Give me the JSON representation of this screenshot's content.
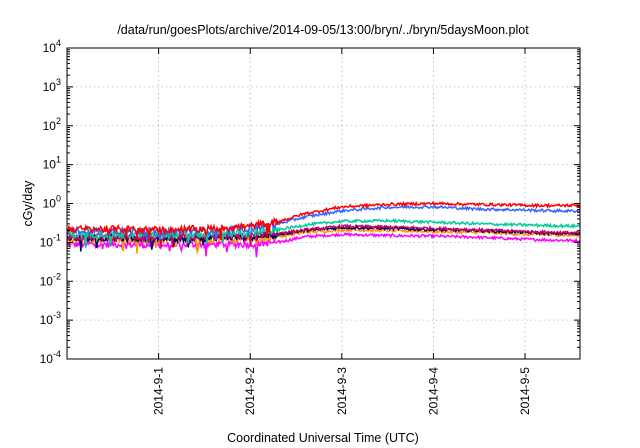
{
  "chart_data": {
    "type": "line",
    "title": "/data/run/goesPlots/archive/2014-09-05/13:00/bryn/../bryn/5daysMoon.plot",
    "xlabel": "Coordinated Universal Time (UTC)",
    "ylabel": "cGy/day",
    "yscale": "log",
    "ylim": [
      0.0001,
      10000
    ],
    "xlim": [
      0,
      5.6
    ],
    "grid": true,
    "legend": "none",
    "y_ticks": [
      {
        "value": 0.0001,
        "base": "10",
        "exp": "-4"
      },
      {
        "value": 0.001,
        "base": "10",
        "exp": "-3"
      },
      {
        "value": 0.01,
        "base": "10",
        "exp": "-2"
      },
      {
        "value": 0.1,
        "base": "10",
        "exp": "-1"
      },
      {
        "value": 1,
        "base": "10",
        "exp": "0"
      },
      {
        "value": 10,
        "base": "10",
        "exp": "1"
      },
      {
        "value": 100,
        "base": "10",
        "exp": "2"
      },
      {
        "value": 1000,
        "base": "10",
        "exp": "3"
      },
      {
        "value": 10000,
        "base": "10",
        "exp": "4"
      }
    ],
    "x_ticks": [
      {
        "value": 1,
        "label": "2014-9-1"
      },
      {
        "value": 2,
        "label": "2014-9-2"
      },
      {
        "value": 3,
        "label": "2014-9-3"
      },
      {
        "value": 4,
        "label": "2014-9-4"
      },
      {
        "value": 5,
        "label": "2014-9-5"
      }
    ],
    "series": [
      {
        "color": "#ff00ff",
        "x": [
          0,
          0.5,
          1.0,
          1.5,
          2.0,
          2.3,
          2.6,
          3.0,
          3.5,
          4.0,
          4.5,
          5.0,
          5.3,
          5.6
        ],
        "y": [
          0.09,
          0.09,
          0.085,
          0.09,
          0.09,
          0.1,
          0.14,
          0.16,
          0.15,
          0.145,
          0.135,
          0.12,
          0.115,
          0.11
        ]
      },
      {
        "color": "#ff9900",
        "x": [
          0,
          0.5,
          1.0,
          1.5,
          2.0,
          2.3,
          2.6,
          3.0,
          3.5,
          4.0,
          4.5,
          5.0,
          5.3,
          5.6
        ],
        "y": [
          0.12,
          0.12,
          0.115,
          0.12,
          0.125,
          0.14,
          0.18,
          0.21,
          0.2,
          0.19,
          0.18,
          0.16,
          0.155,
          0.15
        ]
      },
      {
        "color": "#000066",
        "x": [
          0,
          0.5,
          1.0,
          1.5,
          2.0,
          2.3,
          2.6,
          3.0,
          3.5,
          4.0,
          4.5,
          5.0,
          5.3,
          5.6
        ],
        "y": [
          0.13,
          0.13,
          0.125,
          0.13,
          0.14,
          0.16,
          0.2,
          0.24,
          0.23,
          0.21,
          0.2,
          0.18,
          0.17,
          0.165
        ]
      },
      {
        "color": "#cc0066",
        "x": [
          0,
          0.5,
          1.0,
          1.5,
          2.0,
          2.3,
          2.6,
          3.0,
          3.5,
          4.0,
          4.5,
          5.0,
          5.3,
          5.6
        ],
        "y": [
          0.14,
          0.14,
          0.135,
          0.14,
          0.15,
          0.17,
          0.21,
          0.26,
          0.25,
          0.23,
          0.21,
          0.19,
          0.18,
          0.175
        ]
      },
      {
        "color": "#00cc99",
        "x": [
          0,
          0.5,
          1.0,
          1.5,
          2.0,
          2.3,
          2.6,
          3.0,
          3.5,
          4.0,
          4.5,
          5.0,
          5.3,
          5.6
        ],
        "y": [
          0.16,
          0.16,
          0.155,
          0.16,
          0.18,
          0.21,
          0.28,
          0.35,
          0.36,
          0.33,
          0.3,
          0.28,
          0.27,
          0.26
        ]
      },
      {
        "color": "#3366ff",
        "x": [
          0,
          0.5,
          1.0,
          1.5,
          2.0,
          2.3,
          2.6,
          3.0,
          3.5,
          4.0,
          4.5,
          5.0,
          5.3,
          5.6
        ],
        "y": [
          0.2,
          0.2,
          0.19,
          0.2,
          0.23,
          0.3,
          0.45,
          0.65,
          0.8,
          0.82,
          0.72,
          0.68,
          0.65,
          0.64
        ]
      },
      {
        "color": "#ff0000",
        "x": [
          0,
          0.5,
          1.0,
          1.5,
          2.0,
          2.3,
          2.6,
          3.0,
          3.5,
          4.0,
          4.5,
          5.0,
          5.3,
          5.6
        ],
        "y": [
          0.22,
          0.22,
          0.21,
          0.22,
          0.26,
          0.34,
          0.55,
          0.82,
          0.95,
          1.0,
          0.95,
          0.9,
          0.88,
          0.9
        ]
      }
    ]
  }
}
